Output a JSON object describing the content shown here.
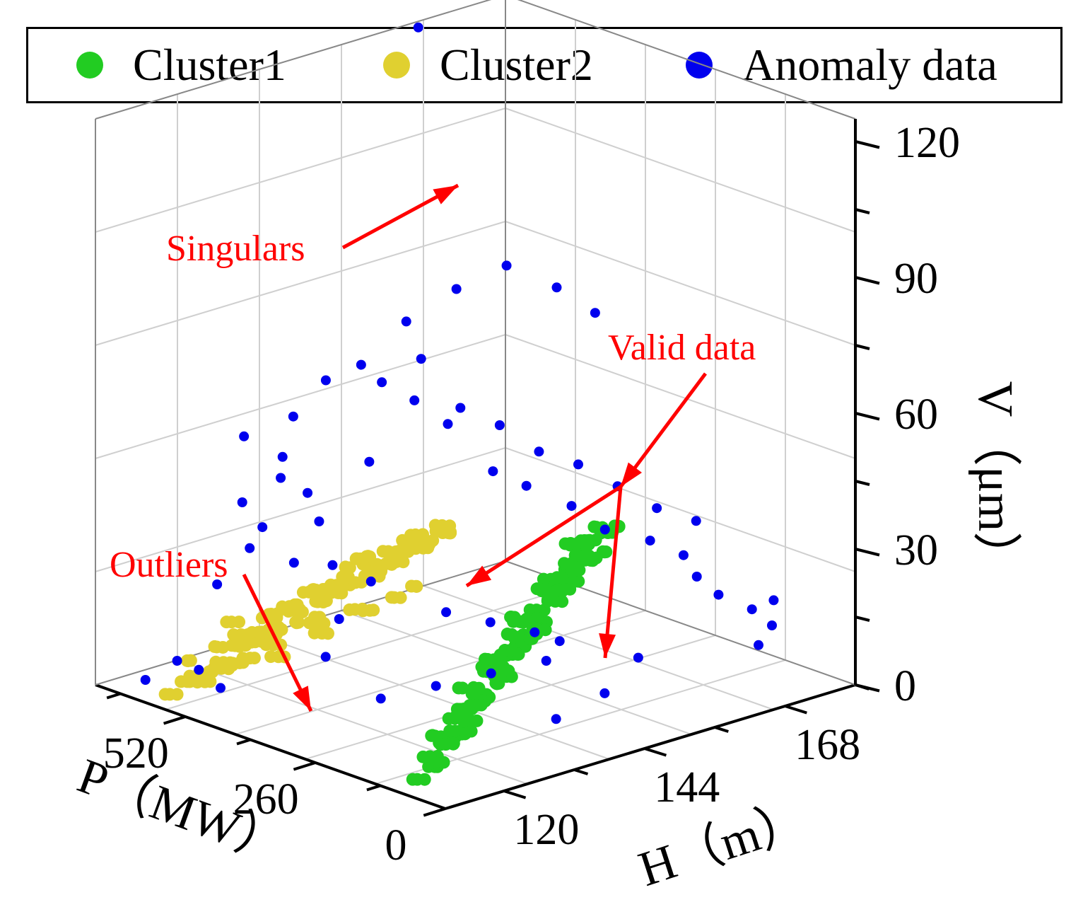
{
  "chart_data": {
    "type": "scatter3d",
    "legend": {
      "position": "top",
      "items": [
        {
          "name": "Cluster1",
          "color": "#22cc22"
        },
        {
          "name": "Cluster2",
          "color": "#e0d030"
        },
        {
          "name": "Anomaly data",
          "color": "#0000ee"
        }
      ]
    },
    "axes": {
      "P": {
        "label": "P（MW）",
        "ticks": [
          "0",
          "260",
          "520"
        ],
        "range": [
          0,
          700
        ]
      },
      "H": {
        "label": "H（m）",
        "ticks": [
          "120",
          "144",
          "168"
        ],
        "range": [
          110,
          180
        ]
      },
      "V": {
        "label": "V（μm）",
        "ticks": [
          "0",
          "30",
          "60",
          "90",
          "120"
        ],
        "range": [
          0,
          125
        ]
      }
    },
    "grid": true,
    "annotations": [
      {
        "text": "Singulars",
        "color": "#ff0000"
      },
      {
        "text": "Valid data",
        "color": "#ff0000"
      },
      {
        "text": "Outliers",
        "color": "#ff0000"
      }
    ],
    "series": [
      {
        "name": "Cluster1",
        "color": "#22cc22",
        "description": "dense band at low P, rising H, low vibration",
        "points": [
          [
            100,
            115,
            2
          ],
          [
            120,
            118,
            3
          ],
          [
            140,
            122,
            5
          ],
          [
            160,
            126,
            6
          ],
          [
            180,
            130,
            8
          ],
          [
            200,
            134,
            10
          ],
          [
            220,
            138,
            11
          ],
          [
            240,
            142,
            13
          ],
          [
            260,
            146,
            14
          ],
          [
            280,
            150,
            16
          ],
          [
            300,
            154,
            18
          ],
          [
            320,
            158,
            19
          ],
          [
            340,
            162,
            20
          ],
          [
            360,
            166,
            22
          ],
          [
            380,
            170,
            24
          ],
          [
            150,
            124,
            4
          ],
          [
            170,
            128,
            7
          ],
          [
            190,
            132,
            9
          ],
          [
            210,
            136,
            12
          ],
          [
            230,
            140,
            12
          ],
          [
            250,
            144,
            15
          ],
          [
            270,
            148,
            15
          ],
          [
            290,
            152,
            17
          ],
          [
            310,
            156,
            19
          ],
          [
            330,
            160,
            21
          ],
          [
            350,
            164,
            22
          ],
          [
            370,
            168,
            23
          ],
          [
            120,
            120,
            8
          ],
          [
            160,
            128,
            12
          ],
          [
            200,
            136,
            16
          ],
          [
            240,
            144,
            19
          ],
          [
            280,
            152,
            22
          ],
          [
            320,
            160,
            25
          ],
          [
            300,
            158,
            28
          ],
          [
            260,
            150,
            24
          ],
          [
            220,
            142,
            20
          ],
          [
            180,
            134,
            14
          ],
          [
            140,
            126,
            10
          ]
        ]
      },
      {
        "name": "Cluster2",
        "color": "#e0d030",
        "description": "dense band at high P, lower H, moderate vibration",
        "points": [
          [
            560,
            112,
            4
          ],
          [
            540,
            114,
            6
          ],
          [
            520,
            116,
            9
          ],
          [
            500,
            118,
            12
          ],
          [
            480,
            120,
            15
          ],
          [
            460,
            122,
            18
          ],
          [
            440,
            124,
            21
          ],
          [
            420,
            126,
            24
          ],
          [
            400,
            128,
            27
          ],
          [
            380,
            130,
            30
          ],
          [
            360,
            132,
            33
          ],
          [
            340,
            134,
            35
          ],
          [
            320,
            136,
            37
          ],
          [
            550,
            115,
            8
          ],
          [
            530,
            118,
            12
          ],
          [
            510,
            120,
            14
          ],
          [
            490,
            122,
            17
          ],
          [
            470,
            124,
            20
          ],
          [
            450,
            126,
            23
          ],
          [
            430,
            128,
            26
          ],
          [
            410,
            130,
            29
          ],
          [
            390,
            132,
            31
          ],
          [
            370,
            134,
            34
          ],
          [
            350,
            136,
            36
          ],
          [
            330,
            138,
            38
          ],
          [
            520,
            119,
            16
          ],
          [
            480,
            123,
            20
          ],
          [
            440,
            127,
            25
          ],
          [
            400,
            131,
            30
          ],
          [
            360,
            135,
            34
          ],
          [
            500,
            116,
            10
          ],
          [
            460,
            120,
            13
          ],
          [
            420,
            124,
            18
          ],
          [
            380,
            128,
            22
          ],
          [
            340,
            132,
            26
          ]
        ]
      },
      {
        "name": "Anomaly data",
        "color": "#0000ee",
        "description": "scattered points including singular at ~128 µm",
        "points": [
          [
            640,
            160,
            128
          ],
          [
            520,
            120,
            58
          ],
          [
            480,
            125,
            62
          ],
          [
            450,
            128,
            70
          ],
          [
            420,
            135,
            68
          ],
          [
            400,
            140,
            72
          ],
          [
            380,
            145,
            60
          ],
          [
            360,
            150,
            55
          ],
          [
            340,
            155,
            48
          ],
          [
            320,
            160,
            44
          ],
          [
            300,
            165,
            38
          ],
          [
            280,
            170,
            32
          ],
          [
            260,
            175,
            28
          ],
          [
            500,
            118,
            45
          ],
          [
            470,
            122,
            50
          ],
          [
            440,
            126,
            40
          ],
          [
            410,
            132,
            52
          ],
          [
            390,
            138,
            64
          ],
          [
            370,
            142,
            58
          ],
          [
            350,
            148,
            46
          ],
          [
            330,
            152,
            42
          ],
          [
            310,
            158,
            36
          ],
          [
            290,
            162,
            30
          ],
          [
            270,
            168,
            26
          ],
          [
            250,
            172,
            22
          ],
          [
            560,
            112,
            10
          ],
          [
            540,
            114,
            8
          ],
          [
            600,
            110,
            5
          ],
          [
            520,
            116,
            4
          ],
          [
            200,
            170,
            20
          ],
          [
            180,
            172,
            16
          ],
          [
            160,
            176,
            12
          ],
          [
            140,
            178,
            14
          ],
          [
            120,
            176,
            10
          ],
          [
            100,
            172,
            8
          ],
          [
            240,
            150,
            12
          ],
          [
            220,
            146,
            10
          ],
          [
            260,
            140,
            8
          ],
          [
            300,
            134,
            6
          ],
          [
            340,
            128,
            4
          ],
          [
            200,
            160,
            6
          ],
          [
            150,
            150,
            4
          ],
          [
            130,
            140,
            3
          ],
          [
            460,
            130,
            28
          ],
          [
            430,
            134,
            24
          ],
          [
            400,
            126,
            20
          ],
          [
            380,
            122,
            14
          ],
          [
            420,
            120,
            34
          ],
          [
            450,
            115,
            38
          ],
          [
            480,
            112,
            30
          ],
          [
            350,
            140,
            18
          ],
          [
            320,
            145,
            15
          ],
          [
            290,
            150,
            12
          ],
          [
            560,
            130,
            48
          ],
          [
            520,
            140,
            66
          ],
          [
            500,
            146,
            74
          ],
          [
            470,
            152,
            80
          ],
          [
            440,
            158,
            84
          ],
          [
            410,
            164,
            78
          ],
          [
            380,
            168,
            72
          ],
          [
            530,
            124,
            36
          ],
          [
            510,
            130,
            42
          ]
        ]
      }
    ]
  }
}
